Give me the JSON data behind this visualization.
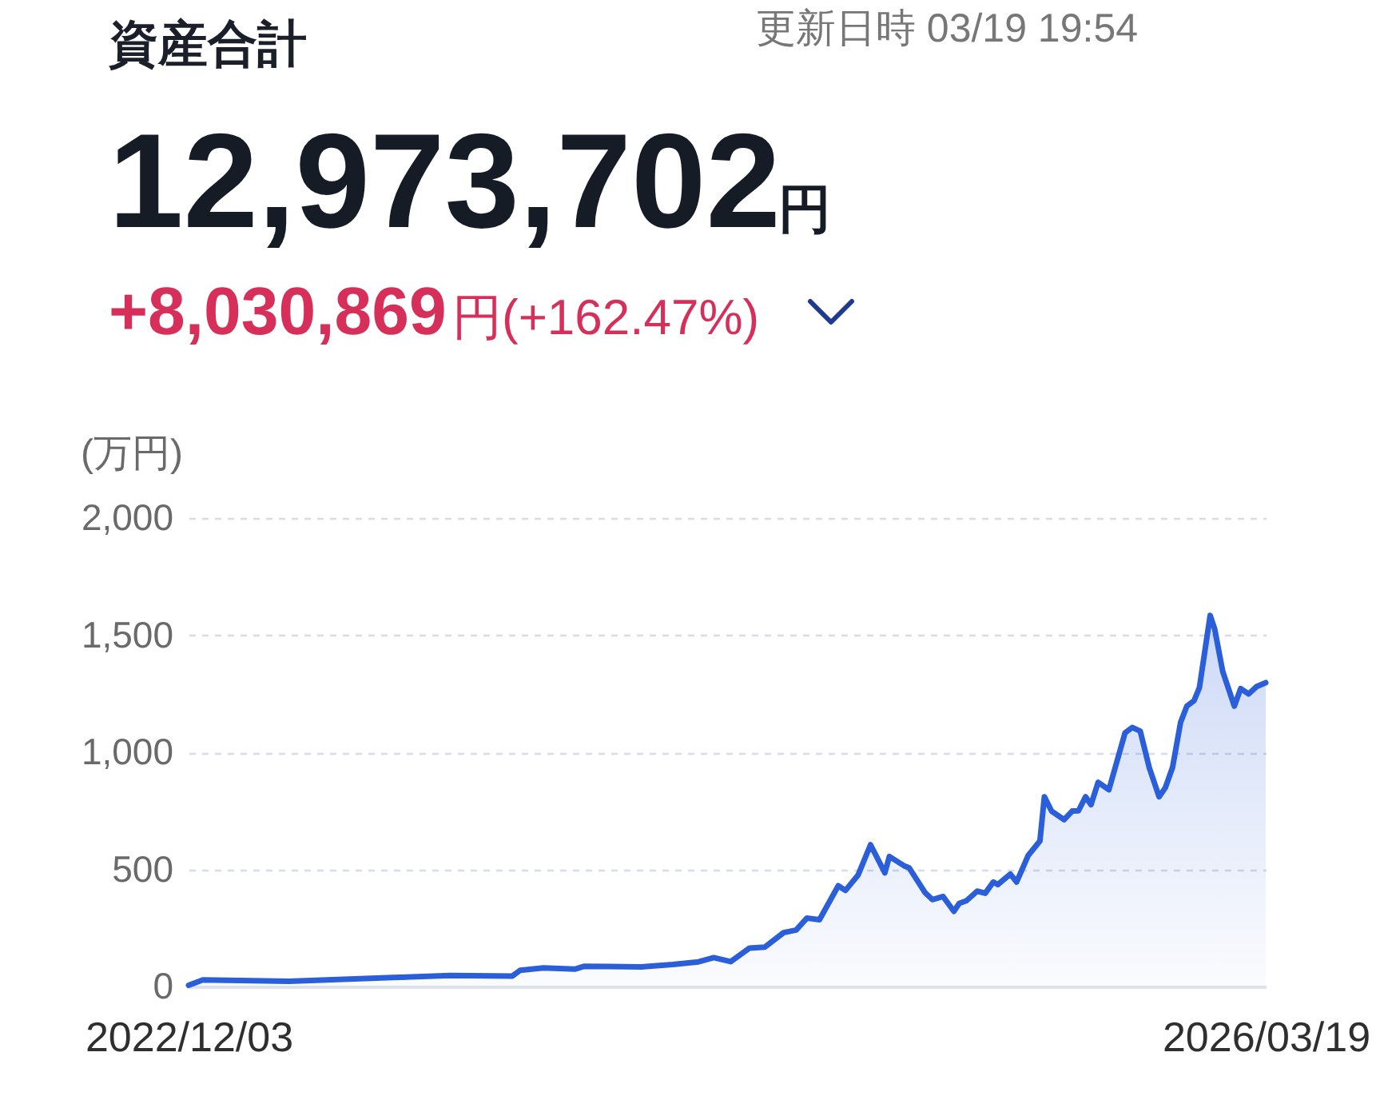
{
  "chart_data": {
    "type": "area",
    "title": "資産合計",
    "annotations": [
      "更新日時 03/19 19:54",
      "12,973,702",
      "円",
      "+8,030,869",
      "円(+162.47%)"
    ],
    "ylabel": "(万円)",
    "x": [
      "2022-12-03",
      "2022-12-19",
      "2023-03-25",
      "2023-07-19",
      "2023-09-21",
      "2023-11-29",
      "2023-12-08",
      "2024-01-03",
      "2024-02-07",
      "2024-02-17",
      "2024-04-21",
      "2024-05-26",
      "2024-06-24",
      "2024-07-11",
      "2024-07-30",
      "2024-08-20",
      "2024-09-06",
      "2024-09-27",
      "2024-10-11",
      "2024-10-23",
      "2024-11-06",
      "2024-11-27",
      "2024-12-05",
      "2024-12-19",
      "2025-01-02",
      "2025-01-18",
      "2025-01-23",
      "2025-02-09",
      "2025-02-14",
      "2025-03-04",
      "2025-03-12",
      "2025-03-24",
      "2025-04-05",
      "2025-04-11",
      "2025-04-19",
      "2025-05-01",
      "2025-05-10",
      "2025-05-19",
      "2025-05-24",
      "2025-06-07",
      "2025-06-14",
      "2025-06-27",
      "2025-07-10",
      "2025-07-15",
      "2025-07-23",
      "2025-08-06",
      "2025-08-15",
      "2025-08-22",
      "2025-08-30",
      "2025-09-05",
      "2025-09-13",
      "2025-09-25",
      "2025-10-13",
      "2025-10-21",
      "2025-10-30",
      "2025-11-09",
      "2025-11-20",
      "2025-11-27",
      "2025-12-05",
      "2025-12-14",
      "2025-12-21",
      "2025-12-29",
      "2026-01-04",
      "2026-01-16",
      "2026-01-21",
      "2026-01-30",
      "2026-02-12",
      "2026-02-19",
      "2026-02-28",
      "2026-03-09",
      "2026-03-19"
    ],
    "series": [
      {
        "color": "#2b5fd9",
        "values": [
          5,
          28,
          22,
          38,
          47,
          44,
          69,
          79,
          74,
          86,
          84,
          94,
          105,
          123,
          106,
          164,
          168,
          230,
          241,
          292,
          285,
          430,
          410,
          475,
          605,
          485,
          555,
          514,
          507,
          400,
          371,
          384,
          321,
          355,
          366,
          407,
          398,
          446,
          435,
          480,
          446,
          560,
          621,
          810,
          749,
          712,
          749,
          750,
          810,
          776,
          872,
          840,
          1083,
          1106,
          1090,
          935,
          810,
          849,
          935,
          1128,
          1197,
          1220,
          1276,
          1584,
          1527,
          1345,
          1197,
          1272,
          1249,
          1281,
          1297
        ]
      }
    ],
    "xlim": [
      "2022-12-03",
      "2026-03-19"
    ],
    "xticks": [
      {
        "value": "2022-12-03",
        "label": "2022/12/03"
      },
      {
        "value": "2026-03-19",
        "label": "2026/03/19"
      }
    ],
    "ylim": [
      0,
      2000
    ],
    "yticks": [
      0,
      {
        "value": 500,
        "label": "500"
      },
      {
        "value": 1000,
        "label": "1,000"
      },
      {
        "value": 1500,
        "label": "1,500"
      },
      {
        "value": 2000,
        "label": "2,000"
      }
    ],
    "grid": "y"
  }
}
